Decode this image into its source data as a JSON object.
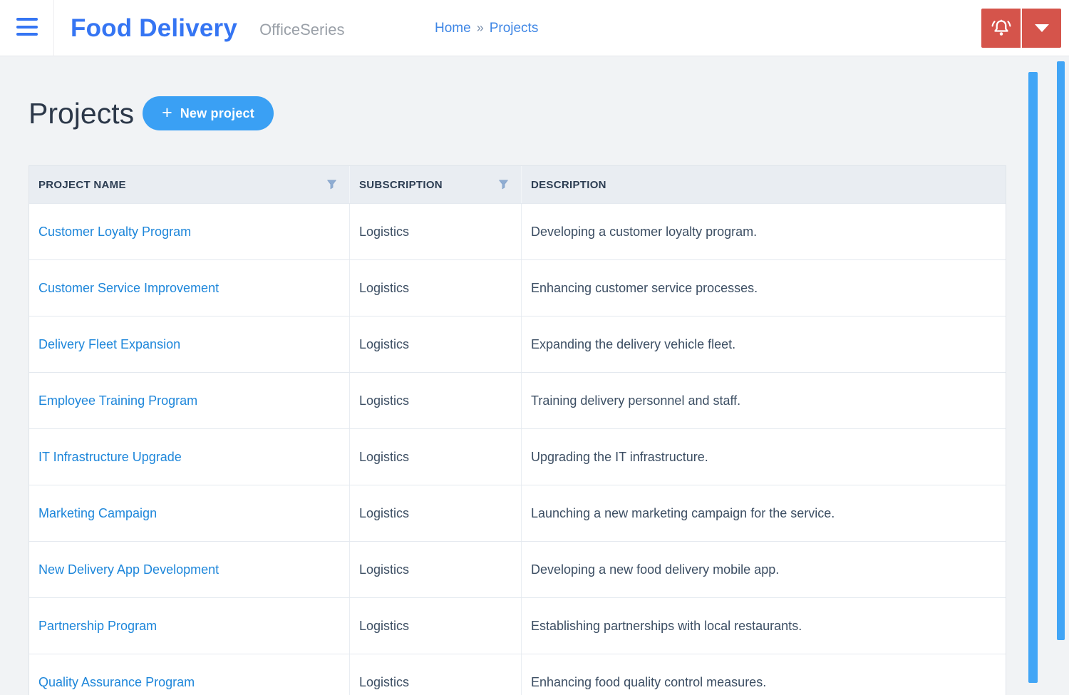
{
  "header": {
    "app_title": "Food Delivery",
    "suite_name": "OfficeSeries",
    "breadcrumb": {
      "home": "Home",
      "separator": "»",
      "current": "Projects"
    }
  },
  "page": {
    "title": "Projects",
    "new_project_button": {
      "icon": "+",
      "label": "New project"
    }
  },
  "table": {
    "columns": [
      {
        "label": "PROJECT NAME",
        "filter": true
      },
      {
        "label": "SUBSCRIPTION",
        "filter": true
      },
      {
        "label": "DESCRIPTION",
        "filter": false
      }
    ],
    "rows": [
      {
        "name": "Customer Loyalty Program",
        "subscription": "Logistics",
        "description": "Developing a customer loyalty program."
      },
      {
        "name": "Customer Service Improvement",
        "subscription": "Logistics",
        "description": "Enhancing customer service processes."
      },
      {
        "name": "Delivery Fleet Expansion",
        "subscription": "Logistics",
        "description": "Expanding the delivery vehicle fleet."
      },
      {
        "name": "Employee Training Program",
        "subscription": "Logistics",
        "description": "Training delivery personnel and staff."
      },
      {
        "name": "IT Infrastructure Upgrade",
        "subscription": "Logistics",
        "description": "Upgrading the IT infrastructure."
      },
      {
        "name": "Marketing Campaign",
        "subscription": "Logistics",
        "description": "Launching a new marketing campaign for the service."
      },
      {
        "name": "New Delivery App Development",
        "subscription": "Logistics",
        "description": "Developing a new food delivery mobile app."
      },
      {
        "name": "Partnership Program",
        "subscription": "Logistics",
        "description": "Establishing partnerships with local restaurants."
      },
      {
        "name": "Quality Assurance Program",
        "subscription": "Logistics",
        "description": "Enhancing food quality control measures."
      }
    ]
  },
  "colors": {
    "brand_blue": "#3575f3",
    "link_blue": "#1d86da",
    "breadcrumb_blue": "#3e86e5",
    "accent_blue": "#3aa0f4",
    "scrollbar_blue": "#41a5f6",
    "danger_red": "#d5544b",
    "page_bg": "#f1f3f5",
    "table_header_bg": "#e9edf2",
    "title_text": "#2c3849",
    "cell_text": "#3c4e63",
    "header_text": "#2d3e53",
    "table_border": "#e4e9ef",
    "funnel_fill": "#8fadd2"
  }
}
